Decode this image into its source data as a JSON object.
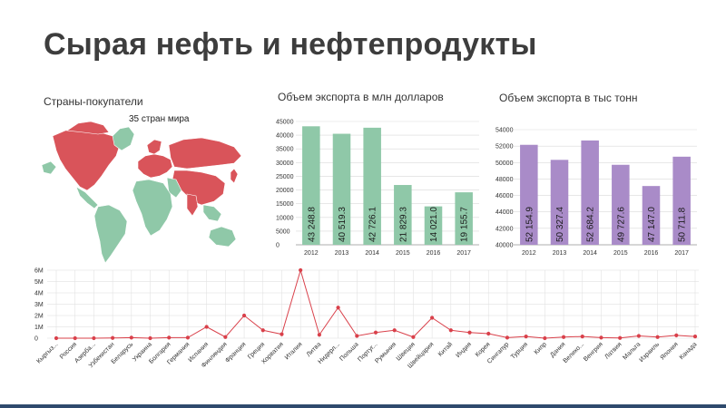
{
  "page": {
    "title": "Сырая нефть и нефтепродукты",
    "map_caption": "Страны-покупатели",
    "map_subcaption": "35 стран мира",
    "colors": {
      "green": "#8fc8a8",
      "purple": "#a98bc8",
      "red_line": "#d9404a",
      "map_red": "#d9545a",
      "map_green": "#8fc8a8"
    }
  },
  "chart_data": [
    {
      "type": "bar",
      "title": "Объем экспорта в млн долларов",
      "categories": [
        "2012",
        "2013",
        "2014",
        "2015",
        "2016",
        "2017"
      ],
      "values": [
        43248.8,
        40519.3,
        42726.1,
        21829.3,
        14021.0,
        19155.7
      ],
      "labels": [
        "43 248.8",
        "40 519.3",
        "42 726.1",
        "21 829.3",
        "14 021.0",
        "19 155.7"
      ],
      "yticks": [
        "0",
        "5000",
        "10000",
        "15000",
        "20000",
        "25000",
        "30000",
        "35000",
        "40000",
        "45000"
      ],
      "ylim": [
        0,
        45000
      ],
      "grid": true
    },
    {
      "type": "bar",
      "title": "Объем экспорта в тыс тонн",
      "categories": [
        "2012",
        "2013",
        "2014",
        "2015",
        "2016",
        "2017"
      ],
      "values": [
        52154.9,
        50327.4,
        52684.2,
        49727.6,
        47147.0,
        50711.8
      ],
      "labels": [
        "52 154.9",
        "50 327.4",
        "52 684.2",
        "49 727.6",
        "47 147.0",
        "50 711.8"
      ],
      "yticks": [
        "40000",
        "42000",
        "44000",
        "46000",
        "48000",
        "50000",
        "52000",
        "54000"
      ],
      "ylim": [
        40000,
        54000
      ],
      "grid": true
    },
    {
      "type": "line",
      "categories": [
        "Кыргыз...",
        "Россия",
        "Азерба...",
        "Узбекистан",
        "Беларусь",
        "Украина",
        "Болгария",
        "Германия",
        "Испания",
        "Финляндия",
        "Франция",
        "Греция",
        "Хорватия",
        "Италия",
        "Литва",
        "Нидерл...",
        "Польша",
        "Португ...",
        "Румыния",
        "Швеция",
        "Швейцария",
        "Китай",
        "Индия",
        "Корея",
        "Сингапур",
        "Турция",
        "Кипр",
        "Дания",
        "Велико...",
        "Венгрия",
        "Латвия",
        "Мальта",
        "Израиль",
        "Япония",
        "Канада"
      ],
      "values": [
        0,
        0,
        0,
        0.02,
        0.05,
        0,
        0.05,
        0.05,
        1.0,
        0.1,
        2.0,
        0.7,
        0.35,
        6.0,
        0.3,
        2.7,
        0.2,
        0.5,
        0.7,
        0.1,
        1.8,
        0.7,
        0.5,
        0.4,
        0.05,
        0.15,
        0,
        0.1,
        0.15,
        0.05,
        0.02,
        0.2,
        0.1,
        0.25,
        0.15
      ],
      "yticks": [
        "0",
        "1M",
        "2M",
        "3M",
        "4M",
        "5M",
        "6M"
      ],
      "ylim": [
        0,
        6
      ],
      "grid": true
    }
  ]
}
